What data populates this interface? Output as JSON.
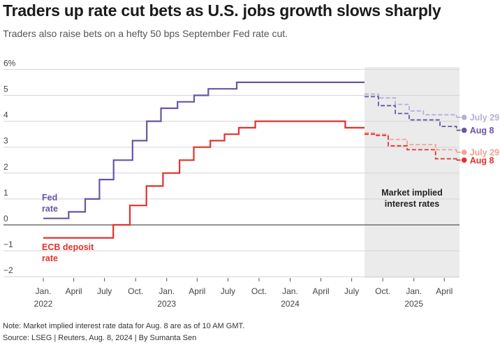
{
  "title": "Traders up rate cut bets as U.S. jobs growth slows sharply",
  "subtitle": "Traders also raise bets on a hefty 50 bps September Fed rate cut.",
  "note": "Note: Market implied interest rate data for Aug. 8 are as of 10 AM GMT.",
  "source": "Source: LSEG | Reuters, Aug. 8, 2024 | By Sumanta Sen",
  "colors": {
    "fed": "#6a54a3",
    "fed_light": "#b8addb",
    "ecb": "#e0322a",
    "ecb_light": "#f4a093",
    "shade": "#ebebeb"
  },
  "chart_data": {
    "type": "line",
    "xlim": [
      "2022-01-01",
      "2025-05-20"
    ],
    "ylim": [
      -2.3,
      6
    ],
    "yticks": [
      -2,
      -1,
      0,
      1,
      2,
      3,
      4,
      5,
      6
    ],
    "ytick_labels": [
      "−2",
      "−1",
      "0",
      "1",
      "2",
      "3",
      "4",
      "5",
      "6%"
    ],
    "xticks": [
      {
        "date": "2022-01-01",
        "label": "Jan.",
        "year": "2022"
      },
      {
        "date": "2022-04-01",
        "label": "April",
        "year": ""
      },
      {
        "date": "2022-07-01",
        "label": "July",
        "year": ""
      },
      {
        "date": "2022-10-01",
        "label": "Oct.",
        "year": ""
      },
      {
        "date": "2023-01-01",
        "label": "Jan.",
        "year": "2023"
      },
      {
        "date": "2023-04-01",
        "label": "April",
        "year": ""
      },
      {
        "date": "2023-07-01",
        "label": "July",
        "year": ""
      },
      {
        "date": "2023-10-01",
        "label": "Oct.",
        "year": ""
      },
      {
        "date": "2024-01-01",
        "label": "Jan.",
        "year": "2024"
      },
      {
        "date": "2024-04-01",
        "label": "April",
        "year": ""
      },
      {
        "date": "2024-07-01",
        "label": "July",
        "year": ""
      },
      {
        "date": "2024-10-01",
        "label": "Oct.",
        "year": ""
      },
      {
        "date": "2025-01-01",
        "label": "Jan.",
        "year": "2025"
      },
      {
        "date": "2025-04-01",
        "label": "April",
        "year": ""
      }
    ],
    "shaded_region": {
      "start": "2024-08-08",
      "end": "2025-05-20",
      "label": "Market implied interest rates"
    },
    "series": [
      {
        "name": "Fed rate",
        "label_lines": [
          "Fed",
          "rate"
        ],
        "style": "solid",
        "color_key": "fed",
        "steps": [
          [
            "2022-01-01",
            0.25
          ],
          [
            "2022-03-17",
            0.5
          ],
          [
            "2022-05-05",
            1.0
          ],
          [
            "2022-06-16",
            1.75
          ],
          [
            "2022-07-28",
            2.5
          ],
          [
            "2022-09-22",
            3.25
          ],
          [
            "2022-11-03",
            4.0
          ],
          [
            "2022-12-15",
            4.5
          ],
          [
            "2023-02-02",
            4.75
          ],
          [
            "2023-03-23",
            5.0
          ],
          [
            "2023-05-04",
            5.25
          ],
          [
            "2023-07-27",
            5.5
          ],
          [
            "2024-08-08",
            5.5
          ]
        ]
      },
      {
        "name": "ECB deposit rate",
        "label_lines": [
          "ECB deposit",
          "rate"
        ],
        "style": "solid",
        "color_key": "ecb",
        "steps": [
          [
            "2022-01-01",
            -0.5
          ],
          [
            "2022-07-27",
            0.0
          ],
          [
            "2022-09-14",
            0.75
          ],
          [
            "2022-11-02",
            1.5
          ],
          [
            "2022-12-21",
            2.0
          ],
          [
            "2023-02-08",
            2.5
          ],
          [
            "2023-03-22",
            3.0
          ],
          [
            "2023-05-10",
            3.25
          ],
          [
            "2023-06-21",
            3.5
          ],
          [
            "2023-08-02",
            3.75
          ],
          [
            "2023-09-20",
            4.0
          ],
          [
            "2024-06-12",
            3.75
          ],
          [
            "2024-08-08",
            3.75
          ]
        ]
      },
      {
        "name": "July 29",
        "style": "dashed",
        "color_key": "fed_light",
        "steps": [
          [
            "2024-08-08",
            5.05
          ],
          [
            "2024-09-18",
            4.9
          ],
          [
            "2024-11-07",
            4.65
          ],
          [
            "2024-12-18",
            4.4
          ],
          [
            "2025-01-29",
            4.25
          ],
          [
            "2025-05-07",
            4.15
          ]
        ]
      },
      {
        "name": "Aug 8",
        "style": "dashed",
        "color_key": "fed",
        "steps": [
          [
            "2024-08-08",
            4.95
          ],
          [
            "2024-09-18",
            4.6
          ],
          [
            "2024-11-07",
            4.3
          ],
          [
            "2024-12-18",
            4.05
          ],
          [
            "2025-03-19",
            3.8
          ],
          [
            "2025-05-07",
            3.65
          ]
        ]
      },
      {
        "name": "July 29",
        "style": "dashed",
        "color_key": "ecb_light",
        "steps": [
          [
            "2024-08-08",
            3.55
          ],
          [
            "2024-09-12",
            3.5
          ],
          [
            "2024-10-17",
            3.3
          ],
          [
            "2024-12-12",
            3.1
          ],
          [
            "2025-03-06",
            2.9
          ],
          [
            "2025-05-07",
            2.8
          ]
        ]
      },
      {
        "name": "Aug 8",
        "style": "dashed",
        "color_key": "ecb",
        "steps": [
          [
            "2024-08-08",
            3.5
          ],
          [
            "2024-09-12",
            3.45
          ],
          [
            "2024-10-17",
            3.05
          ],
          [
            "2024-12-12",
            2.9
          ],
          [
            "2025-03-06",
            2.55
          ],
          [
            "2025-05-07",
            2.5
          ]
        ]
      }
    ],
    "grid": true,
    "title": "Traders up rate cut bets as U.S. jobs growth slows sharply"
  }
}
